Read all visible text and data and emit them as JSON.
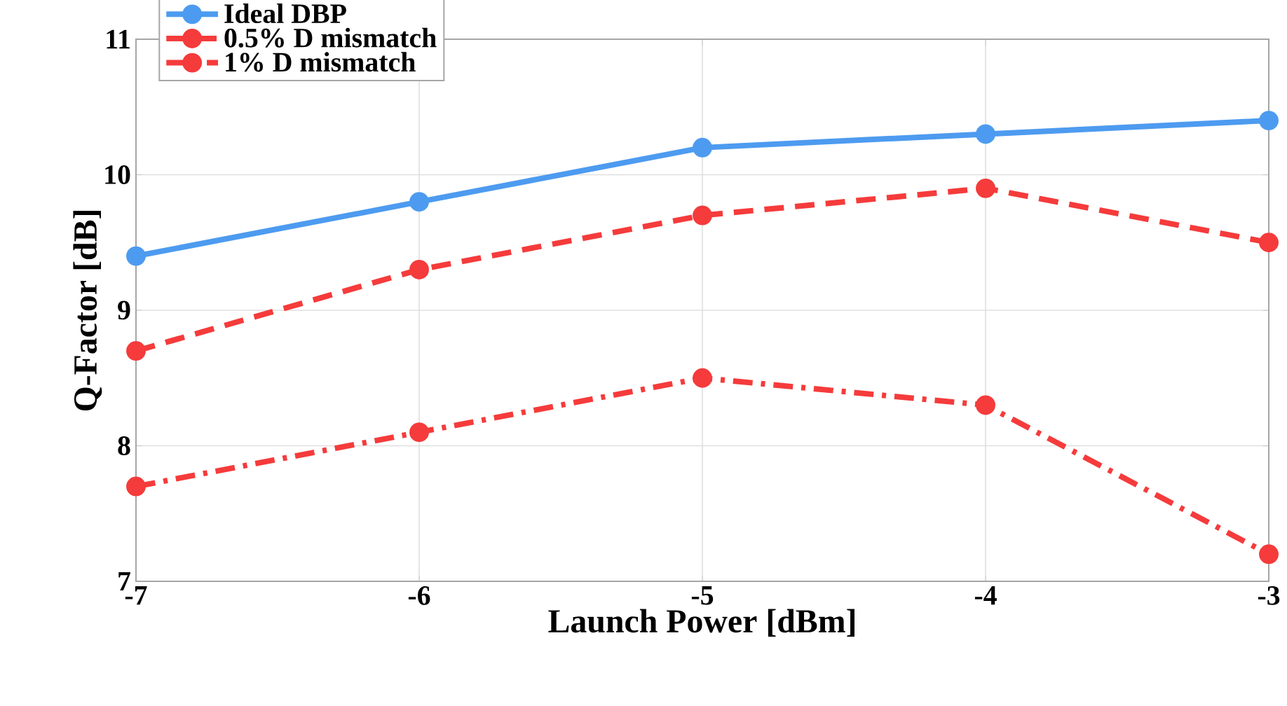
{
  "chart_data": {
    "type": "line",
    "xlabel": "Launch Power [dBm]",
    "ylabel": "Q-Factor [dB]",
    "x": [
      -7,
      -6,
      -5,
      -4,
      -3
    ],
    "series": [
      {
        "name": "Ideal DBP",
        "color": "#4d9bf0",
        "values": [
          9.4,
          9.8,
          10.2,
          10.3,
          10.4
        ],
        "line_style": "solid"
      },
      {
        "name": "0.5% D mismatch",
        "color": "#f53b3b",
        "values": [
          8.7,
          9.3,
          9.7,
          9.9,
          9.5
        ],
        "line_style": "dashed"
      },
      {
        "name": "1% D mismatch",
        "color": "#f53b3b",
        "values": [
          7.7,
          8.1,
          8.5,
          8.3,
          7.2
        ],
        "line_style": "dashdot"
      }
    ],
    "xlim": [
      -7,
      -3
    ],
    "ylim": [
      7,
      11
    ],
    "xticks": [
      -7,
      -6,
      -5,
      -4,
      -3
    ],
    "yticks": [
      7,
      8,
      9,
      10,
      11
    ],
    "grid": true,
    "legend": "top left",
    "marker": "circle"
  }
}
